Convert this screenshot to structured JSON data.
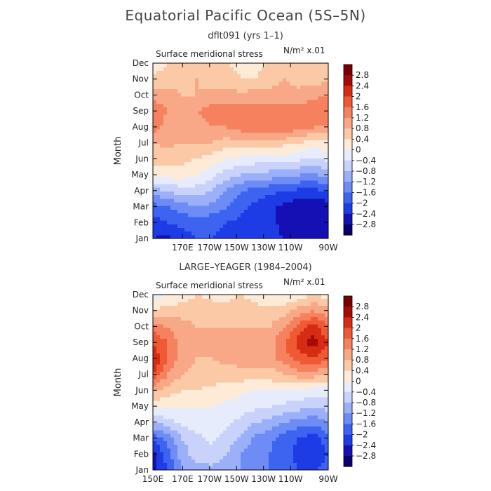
{
  "title": "Equatorial Pacific Ocean (5S–5N)",
  "chart_data": [
    {
      "type": "heatmap",
      "subtitle": "dflt091 (yrs 1–1)",
      "panel_label": "Surface meridional stress",
      "units": "N/m² x.01",
      "ylabel": "Month",
      "yticks": [
        "Jan",
        "Feb",
        "Mar",
        "Apr",
        "May",
        "Jun",
        "Jul",
        "Aug",
        "Sep",
        "Oct",
        "Nov",
        "Dec"
      ],
      "xticks": [
        "170E",
        "170W",
        "150W",
        "130W",
        "110W",
        "90W"
      ],
      "x": [
        "150E",
        "160E",
        "170E",
        "180",
        "170W",
        "160W",
        "150W",
        "140W",
        "130W",
        "120W",
        "110W",
        "100W",
        "90W"
      ],
      "rows": [
        [
          -2.4,
          -2.5,
          -2.2,
          -2.0,
          -2.0,
          -2.1,
          -2.1,
          -2.2,
          -2.3,
          -2.4,
          -2.6,
          -2.6,
          -2.4
        ],
        [
          -2.2,
          -2.0,
          -1.9,
          -1.8,
          -1.9,
          -2.0,
          -2.1,
          -2.2,
          -2.3,
          -2.5,
          -2.6,
          -2.7,
          -2.5
        ],
        [
          -1.8,
          -1.6,
          -1.4,
          -1.2,
          -1.3,
          -1.6,
          -1.9,
          -2.1,
          -2.3,
          -2.5,
          -2.7,
          -2.8,
          -2.6
        ],
        [
          -1.0,
          -0.8,
          -0.6,
          -0.6,
          -0.8,
          -1.2,
          -1.6,
          -1.8,
          -1.9,
          -2.0,
          -2.1,
          -2.1,
          -2.0
        ],
        [
          0.1,
          0.2,
          0.2,
          0.0,
          -0.3,
          -0.6,
          -0.8,
          -0.9,
          -1.0,
          -1.0,
          -1.2,
          -1.3,
          -1.0
        ],
        [
          0.6,
          0.6,
          0.5,
          0.4,
          0.2,
          0.0,
          -0.1,
          -0.2,
          -0.2,
          -0.2,
          -0.3,
          -0.5,
          -0.3
        ],
        [
          0.8,
          0.9,
          0.8,
          0.8,
          0.8,
          0.6,
          0.6,
          0.6,
          0.6,
          0.5,
          0.4,
          0.2,
          0.3
        ],
        [
          1.4,
          1.0,
          1.0,
          1.0,
          1.2,
          1.2,
          1.4,
          1.6,
          1.6,
          1.5,
          1.4,
          1.2,
          1.2
        ],
        [
          1.6,
          1.2,
          1.1,
          1.2,
          1.4,
          1.5,
          1.4,
          1.4,
          1.4,
          1.4,
          1.4,
          1.4,
          1.6
        ],
        [
          1.0,
          0.9,
          0.8,
          0.8,
          0.9,
          1.0,
          0.9,
          1.0,
          1.0,
          1.0,
          1.0,
          1.1,
          1.2
        ],
        [
          0.6,
          0.7,
          0.7,
          0.8,
          0.6,
          0.6,
          0.4,
          0.4,
          0.6,
          0.8,
          0.6,
          0.6,
          0.8
        ],
        [
          0.0,
          0.4,
          0.6,
          0.6,
          0.4,
          0.4,
          0.3,
          0.3,
          0.4,
          0.6,
          0.6,
          0.6,
          0.6
        ]
      ]
    },
    {
      "type": "heatmap",
      "subtitle": "LARGE–YEAGER (1984–2004)",
      "panel_label": "Surface meridional stress",
      "units": "N/m² x.01",
      "ylabel": "Month",
      "yticks": [
        "Jan",
        "Feb",
        "Mar",
        "Apr",
        "May",
        "Jun",
        "Jul",
        "Aug",
        "Sep",
        "Oct",
        "Nov",
        "Dec"
      ],
      "xticks": [
        "150E",
        "170E",
        "170W",
        "150W",
        "130W",
        "110W",
        "90W"
      ],
      "x": [
        "150E",
        "160E",
        "170E",
        "180",
        "170W",
        "160W",
        "150W",
        "140W",
        "130W",
        "120W",
        "110W",
        "100W",
        "90W"
      ],
      "rows": [
        [
          -2.6,
          -2.0,
          -1.2,
          -1.0,
          -0.9,
          -1.0,
          -1.2,
          -1.4,
          -1.6,
          -1.8,
          -2.0,
          -2.0,
          -1.8
        ],
        [
          -2.6,
          -1.8,
          -1.0,
          -0.6,
          -0.6,
          -0.8,
          -1.2,
          -1.4,
          -1.6,
          -1.8,
          -2.2,
          -2.3,
          -2.0
        ],
        [
          -2.0,
          -1.4,
          -0.8,
          -0.5,
          -0.3,
          -0.5,
          -0.9,
          -1.3,
          -1.5,
          -1.8,
          -2.0,
          -2.2,
          -1.8
        ],
        [
          -0.8,
          -0.6,
          -0.3,
          -0.2,
          -0.1,
          -0.3,
          -0.5,
          -0.8,
          -0.9,
          -1.2,
          -1.4,
          -1.5,
          -1.2
        ],
        [
          0.2,
          0.1,
          0.0,
          0.0,
          0.0,
          -0.1,
          -0.2,
          -0.3,
          -0.4,
          -0.5,
          -0.6,
          -0.8,
          -0.6
        ],
        [
          0.8,
          0.6,
          0.4,
          0.4,
          0.3,
          0.2,
          0.1,
          0.0,
          0.0,
          0.0,
          -0.1,
          -0.2,
          -0.2
        ],
        [
          2.0,
          1.2,
          0.8,
          0.6,
          0.6,
          0.6,
          0.6,
          0.6,
          0.6,
          0.8,
          1.0,
          1.0,
          0.8
        ],
        [
          2.4,
          1.6,
          1.0,
          0.8,
          0.8,
          0.9,
          1.0,
          1.2,
          1.0,
          1.4,
          1.8,
          2.0,
          1.6
        ],
        [
          2.0,
          1.6,
          1.0,
          0.8,
          0.8,
          1.0,
          1.0,
          1.0,
          1.0,
          1.6,
          2.2,
          2.6,
          2.0
        ],
        [
          1.4,
          1.2,
          1.0,
          0.8,
          0.8,
          0.8,
          0.8,
          0.8,
          0.8,
          1.2,
          1.8,
          2.2,
          1.6
        ],
        [
          0.4,
          0.6,
          0.6,
          0.6,
          0.6,
          0.6,
          0.8,
          0.6,
          0.5,
          0.6,
          1.0,
          1.2,
          1.0
        ],
        [
          -0.2,
          0.0,
          0.2,
          0.4,
          0.3,
          0.2,
          0.4,
          0.2,
          0.0,
          0.0,
          0.2,
          0.4,
          0.2
        ]
      ]
    }
  ],
  "colorbar": {
    "labels": [
      "2.8",
      "2.4",
      "2",
      "1.6",
      "1.2",
      "0.8",
      "0.4",
      "0",
      "−0.4",
      "−0.8",
      "−1.2",
      "−1.6",
      "−2",
      "−2.4",
      "−2.8"
    ],
    "levels": [
      -2.8,
      -2.4,
      -2.0,
      -1.6,
      -1.2,
      -0.8,
      -0.4,
      0,
      0.4,
      0.8,
      1.2,
      1.6,
      2.0,
      2.4,
      2.8
    ],
    "colors": [
      "#08006e",
      "#1410b4",
      "#1e3ce6",
      "#3c64f0",
      "#6e8cf5",
      "#9bb0f8",
      "#c8d2fa",
      "#e6ecfb",
      "#fdebd8",
      "#fbc9a6",
      "#f8a886",
      "#f6815e",
      "#ef5a35",
      "#d72c14",
      "#a60c06",
      "#780000"
    ]
  }
}
